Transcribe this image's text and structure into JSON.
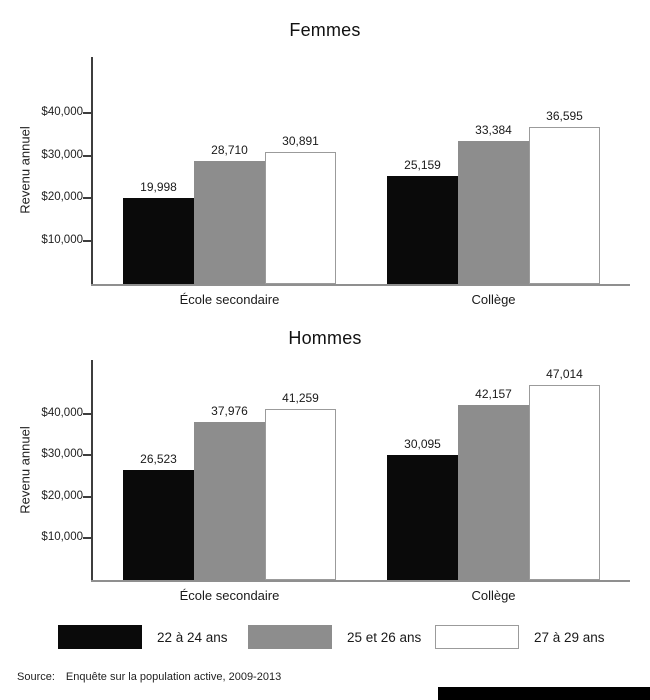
{
  "page": {
    "source_label": "Source:",
    "source_text": "Enquête sur la population active, 2009-2013"
  },
  "legend": {
    "position": "bottom",
    "items": [
      {
        "label": "22 à 24 ans",
        "fill": "#0a0a0a",
        "border": "#0a0a0a"
      },
      {
        "label": "25 et 26 ans",
        "fill": "#8d8d8d",
        "border": "#8d8d8d"
      },
      {
        "label": "27 à 29 ans",
        "fill": "#ffffff",
        "border": "#9b9b9b"
      }
    ]
  },
  "chart_data": [
    {
      "type": "bar",
      "title": "Femmes",
      "xlabel": "",
      "ylabel": "Revenu annuel",
      "categories": [
        "École secondaire",
        "Collège"
      ],
      "series": [
        {
          "name": "22 à 24 ans",
          "color": "#0a0a0a",
          "values": [
            19998,
            25159
          ]
        },
        {
          "name": "25 et 26 ans",
          "color": "#8d8d8d",
          "values": [
            28710,
            33384
          ]
        },
        {
          "name": "27 à 29 ans",
          "color": "#ffffff",
          "values": [
            30891,
            36595
          ]
        }
      ],
      "value_labels": [
        "19,998",
        "28,710",
        "30,891",
        "25,159",
        "33,384",
        "36,595"
      ],
      "yticks": [
        {
          "label": "$10,000",
          "value": 10000
        },
        {
          "label": "$20,000",
          "value": 20000
        },
        {
          "label": "$30,000",
          "value": 30000
        },
        {
          "label": "$40,000",
          "value": 40000
        }
      ],
      "ylim": [
        0,
        53000
      ],
      "grid": false,
      "legend_position": "shared-bottom"
    },
    {
      "type": "bar",
      "title": "Hommes",
      "xlabel": "",
      "ylabel": "Revenu annuel",
      "categories": [
        "École secondaire",
        "Collège"
      ],
      "series": [
        {
          "name": "22 à 24 ans",
          "color": "#0a0a0a",
          "values": [
            26523,
            30095
          ]
        },
        {
          "name": "25 et 26 ans",
          "color": "#8d8d8d",
          "values": [
            37976,
            42157
          ]
        },
        {
          "name": "27 à 29 ans",
          "color": "#ffffff",
          "values": [
            41259,
            47014
          ]
        }
      ],
      "value_labels": [
        "26,523",
        "37,976",
        "41,259",
        "30,095",
        "42,157",
        "47,014"
      ],
      "yticks": [
        {
          "label": "$10,000",
          "value": 10000
        },
        {
          "label": "$20,000",
          "value": 20000
        },
        {
          "label": "$30,000",
          "value": 30000
        },
        {
          "label": "$40,000",
          "value": 40000
        }
      ],
      "ylim": [
        0,
        53000
      ],
      "grid": false,
      "legend_position": "shared-bottom"
    }
  ]
}
